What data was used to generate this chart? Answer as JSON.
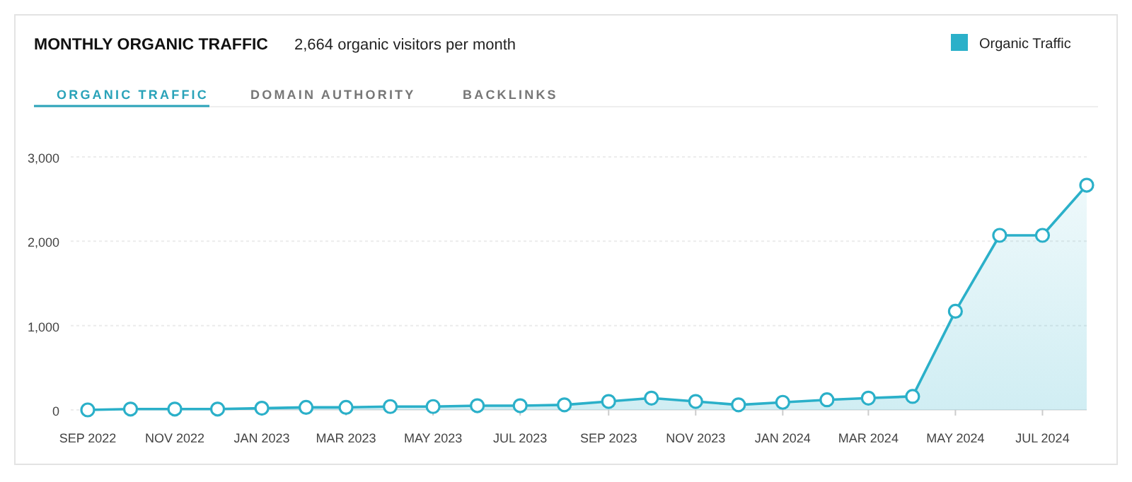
{
  "chart_data": {
    "type": "area",
    "title": "MONTHLY ORGANIC TRAFFIC",
    "subtitle": "2,664 organic visitors per month",
    "annotations": [
      "ORGANIC TRAFFIC",
      "DOMAIN AUTHORITY",
      "BACKLINKS"
    ],
    "x": [
      "2022-09",
      "2022-10",
      "2022-11",
      "2022-12",
      "2023-01",
      "2023-02",
      "2023-03",
      "2023-04",
      "2023-05",
      "2023-06",
      "2023-07",
      "2023-08",
      "2023-09",
      "2023-10",
      "2023-11",
      "2023-12",
      "2024-01",
      "2024-02",
      "2024-03",
      "2024-04",
      "2024-05",
      "2024-06",
      "2024-07",
      "2024-08"
    ],
    "series": [
      {
        "name": "Organic Traffic",
        "color": "#2bb0c9",
        "values": [
          0,
          10,
          10,
          10,
          20,
          30,
          30,
          40,
          40,
          50,
          50,
          60,
          100,
          140,
          100,
          60,
          90,
          120,
          140,
          160,
          1170,
          2070,
          2070,
          2664
        ]
      }
    ],
    "xlim": [
      "2022-09",
      "2024-08"
    ],
    "xticks": [
      {
        "value": "2022-09",
        "label": "SEP 2022"
      },
      {
        "value": "2022-11",
        "label": "NOV 2022"
      },
      {
        "value": "2023-01",
        "label": "JAN 2023"
      },
      {
        "value": "2023-03",
        "label": "MAR 2023"
      },
      {
        "value": "2023-05",
        "label": "MAY 2023"
      },
      {
        "value": "2023-07",
        "label": "JUL 2023"
      },
      {
        "value": "2023-09",
        "label": "SEP 2023"
      },
      {
        "value": "2023-11",
        "label": "NOV 2023"
      },
      {
        "value": "2024-01",
        "label": "JAN 2024"
      },
      {
        "value": "2024-03",
        "label": "MAR 2024"
      },
      {
        "value": "2024-05",
        "label": "MAY 2024"
      },
      {
        "value": "2024-07",
        "label": "JUL 2024"
      }
    ],
    "ylim": [
      0,
      3000
    ],
    "yticks": [
      {
        "value": 0,
        "label": "0"
      },
      {
        "value": 1000,
        "label": "1,000"
      },
      {
        "value": 2000,
        "label": "2,000"
      },
      {
        "value": 3000,
        "label": "3,000"
      }
    ],
    "grid": "y",
    "legend": "top right",
    "marker": "circle"
  }
}
